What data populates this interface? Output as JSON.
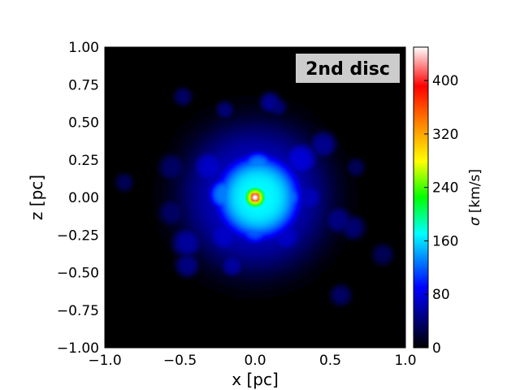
{
  "chart_data": {
    "type": "heatmap",
    "title": "",
    "annotation": "2nd disc",
    "xlabel": "x [pc]",
    "ylabel": "z [pc]",
    "xlim": [
      -1.0,
      1.0
    ],
    "ylim": [
      -1.0,
      1.0
    ],
    "xticks": [
      -1.0,
      -0.5,
      0.0,
      0.5,
      1.0
    ],
    "xtick_labels": [
      "−1.0",
      "−0.5",
      "0.0",
      "0.5",
      "1.0"
    ],
    "yticks": [
      1.0,
      0.75,
      0.5,
      0.25,
      0.0,
      -0.25,
      -0.5,
      -0.75,
      -1.0
    ],
    "ytick_labels": [
      "1.00",
      "0.75",
      "0.50",
      "0.25",
      "0.00",
      "−0.25",
      "−0.50",
      "−0.75",
      "−1.00"
    ],
    "grid": false,
    "colorbar": {
      "label_symbol": "σ",
      "label_unit": "[km/s]",
      "range": [
        0,
        450
      ],
      "ticks": [
        0,
        80,
        160,
        240,
        320,
        400
      ],
      "tick_labels": [
        "0",
        "80",
        "160",
        "240",
        "320",
        "400"
      ],
      "colormap": [
        "#000000",
        "#0000ff",
        "#00ffff",
        "#00ff00",
        "#ffff00",
        "#ff8000",
        "#ff0000",
        "#ffffff"
      ]
    },
    "blobs": [
      {
        "x": 0.0,
        "z": 0.0,
        "sigma_kms": 450,
        "radius_pc": 0.04
      },
      {
        "x": 0.0,
        "z": 0.0,
        "sigma_kms": 280,
        "radius_pc": 0.08
      },
      {
        "x": 0.02,
        "z": 0.0,
        "sigma_kms": 170,
        "radius_pc": 0.3
      },
      {
        "x": -0.2,
        "z": 0.02,
        "sigma_kms": 130,
        "radius_pc": 0.12
      },
      {
        "x": 0.2,
        "z": 0.0,
        "sigma_kms": 130,
        "radius_pc": 0.12
      },
      {
        "x": 0.02,
        "z": 0.2,
        "sigma_kms": 130,
        "radius_pc": 0.12
      },
      {
        "x": 0.0,
        "z": -0.2,
        "sigma_kms": 120,
        "radius_pc": 0.12
      },
      {
        "x": 0.0,
        "z": 0.0,
        "sigma_kms": 70,
        "radius_pc": 0.5
      },
      {
        "x": -0.3,
        "z": 0.2,
        "sigma_kms": 70,
        "radius_pc": 0.12
      },
      {
        "x": 0.3,
        "z": 0.25,
        "sigma_kms": 75,
        "radius_pc": 0.12
      },
      {
        "x": -0.2,
        "z": -0.25,
        "sigma_kms": 70,
        "radius_pc": 0.12
      },
      {
        "x": 0.2,
        "z": -0.25,
        "sigma_kms": 70,
        "radius_pc": 0.12
      },
      {
        "x": 0.35,
        "z": 0.0,
        "sigma_kms": 65,
        "radius_pc": 0.11
      },
      {
        "x": -0.45,
        "z": -0.3,
        "sigma_kms": 55,
        "radius_pc": 0.1
      },
      {
        "x": -0.15,
        "z": -0.45,
        "sigma_kms": 55,
        "radius_pc": 0.08
      },
      {
        "x": -0.45,
        "z": -0.45,
        "sigma_kms": 45,
        "radius_pc": 0.08
      },
      {
        "x": 0.45,
        "z": 0.35,
        "sigma_kms": 50,
        "radius_pc": 0.09
      },
      {
        "x": 0.55,
        "z": -0.15,
        "sigma_kms": 45,
        "radius_pc": 0.09
      },
      {
        "x": 0.65,
        "z": -0.2,
        "sigma_kms": 40,
        "radius_pc": 0.08
      },
      {
        "x": 0.1,
        "z": 0.63,
        "sigma_kms": 50,
        "radius_pc": 0.07
      },
      {
        "x": 0.15,
        "z": 0.6,
        "sigma_kms": 40,
        "radius_pc": 0.06
      },
      {
        "x": -0.2,
        "z": 0.58,
        "sigma_kms": 40,
        "radius_pc": 0.06
      },
      {
        "x": -0.48,
        "z": 0.67,
        "sigma_kms": 35,
        "radius_pc": 0.06
      },
      {
        "x": -0.87,
        "z": 0.1,
        "sigma_kms": 30,
        "radius_pc": 0.06
      },
      {
        "x": 0.67,
        "z": 0.2,
        "sigma_kms": 30,
        "radius_pc": 0.06
      },
      {
        "x": 0.85,
        "z": -0.38,
        "sigma_kms": 30,
        "radius_pc": 0.07
      },
      {
        "x": 0.57,
        "z": -0.65,
        "sigma_kms": 35,
        "radius_pc": 0.07
      },
      {
        "x": -0.55,
        "z": -0.1,
        "sigma_kms": 35,
        "radius_pc": 0.09
      },
      {
        "x": -0.55,
        "z": 0.2,
        "sigma_kms": 35,
        "radius_pc": 0.09
      }
    ]
  }
}
